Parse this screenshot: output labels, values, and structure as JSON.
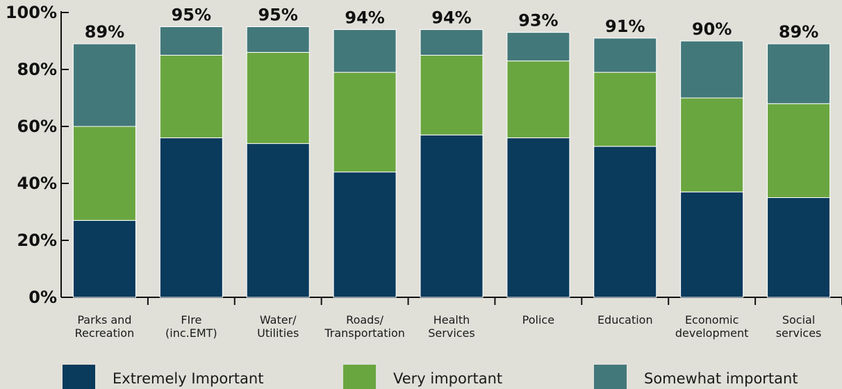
{
  "chart_data": {
    "type": "bar",
    "stacked": true,
    "categories": [
      [
        "Parks and",
        "Recreation"
      ],
      [
        "FIre",
        "(inc.EMT)"
      ],
      [
        "Water/",
        "Utilities"
      ],
      [
        "Roads/",
        "Transportation"
      ],
      [
        "Health",
        "Services"
      ],
      [
        "Police"
      ],
      [
        "Education"
      ],
      [
        "Economic",
        "development"
      ],
      [
        "Social",
        "services"
      ]
    ],
    "series": [
      {
        "name": "Extremely Important",
        "color": "#0a3a5c",
        "values": [
          27,
          56,
          54,
          44,
          57,
          56,
          53,
          37,
          35
        ]
      },
      {
        "name": "Very important",
        "color": "#6aa640",
        "values": [
          33,
          29,
          32,
          35,
          28,
          27,
          26,
          33,
          33
        ]
      },
      {
        "name": "Somewhat important",
        "color": "#43787a",
        "values": [
          29,
          10,
          9,
          15,
          9,
          10,
          12,
          20,
          21
        ]
      }
    ],
    "totals": [
      "89%",
      "95%",
      "95%",
      "94%",
      "94%",
      "93%",
      "91%",
      "90%",
      "89%"
    ],
    "y_ticks": [
      "0%",
      "20%",
      "40%",
      "60%",
      "80%",
      "100%"
    ],
    "ylim": [
      0,
      100
    ],
    "grid": false,
    "legend_position": "bottom"
  }
}
